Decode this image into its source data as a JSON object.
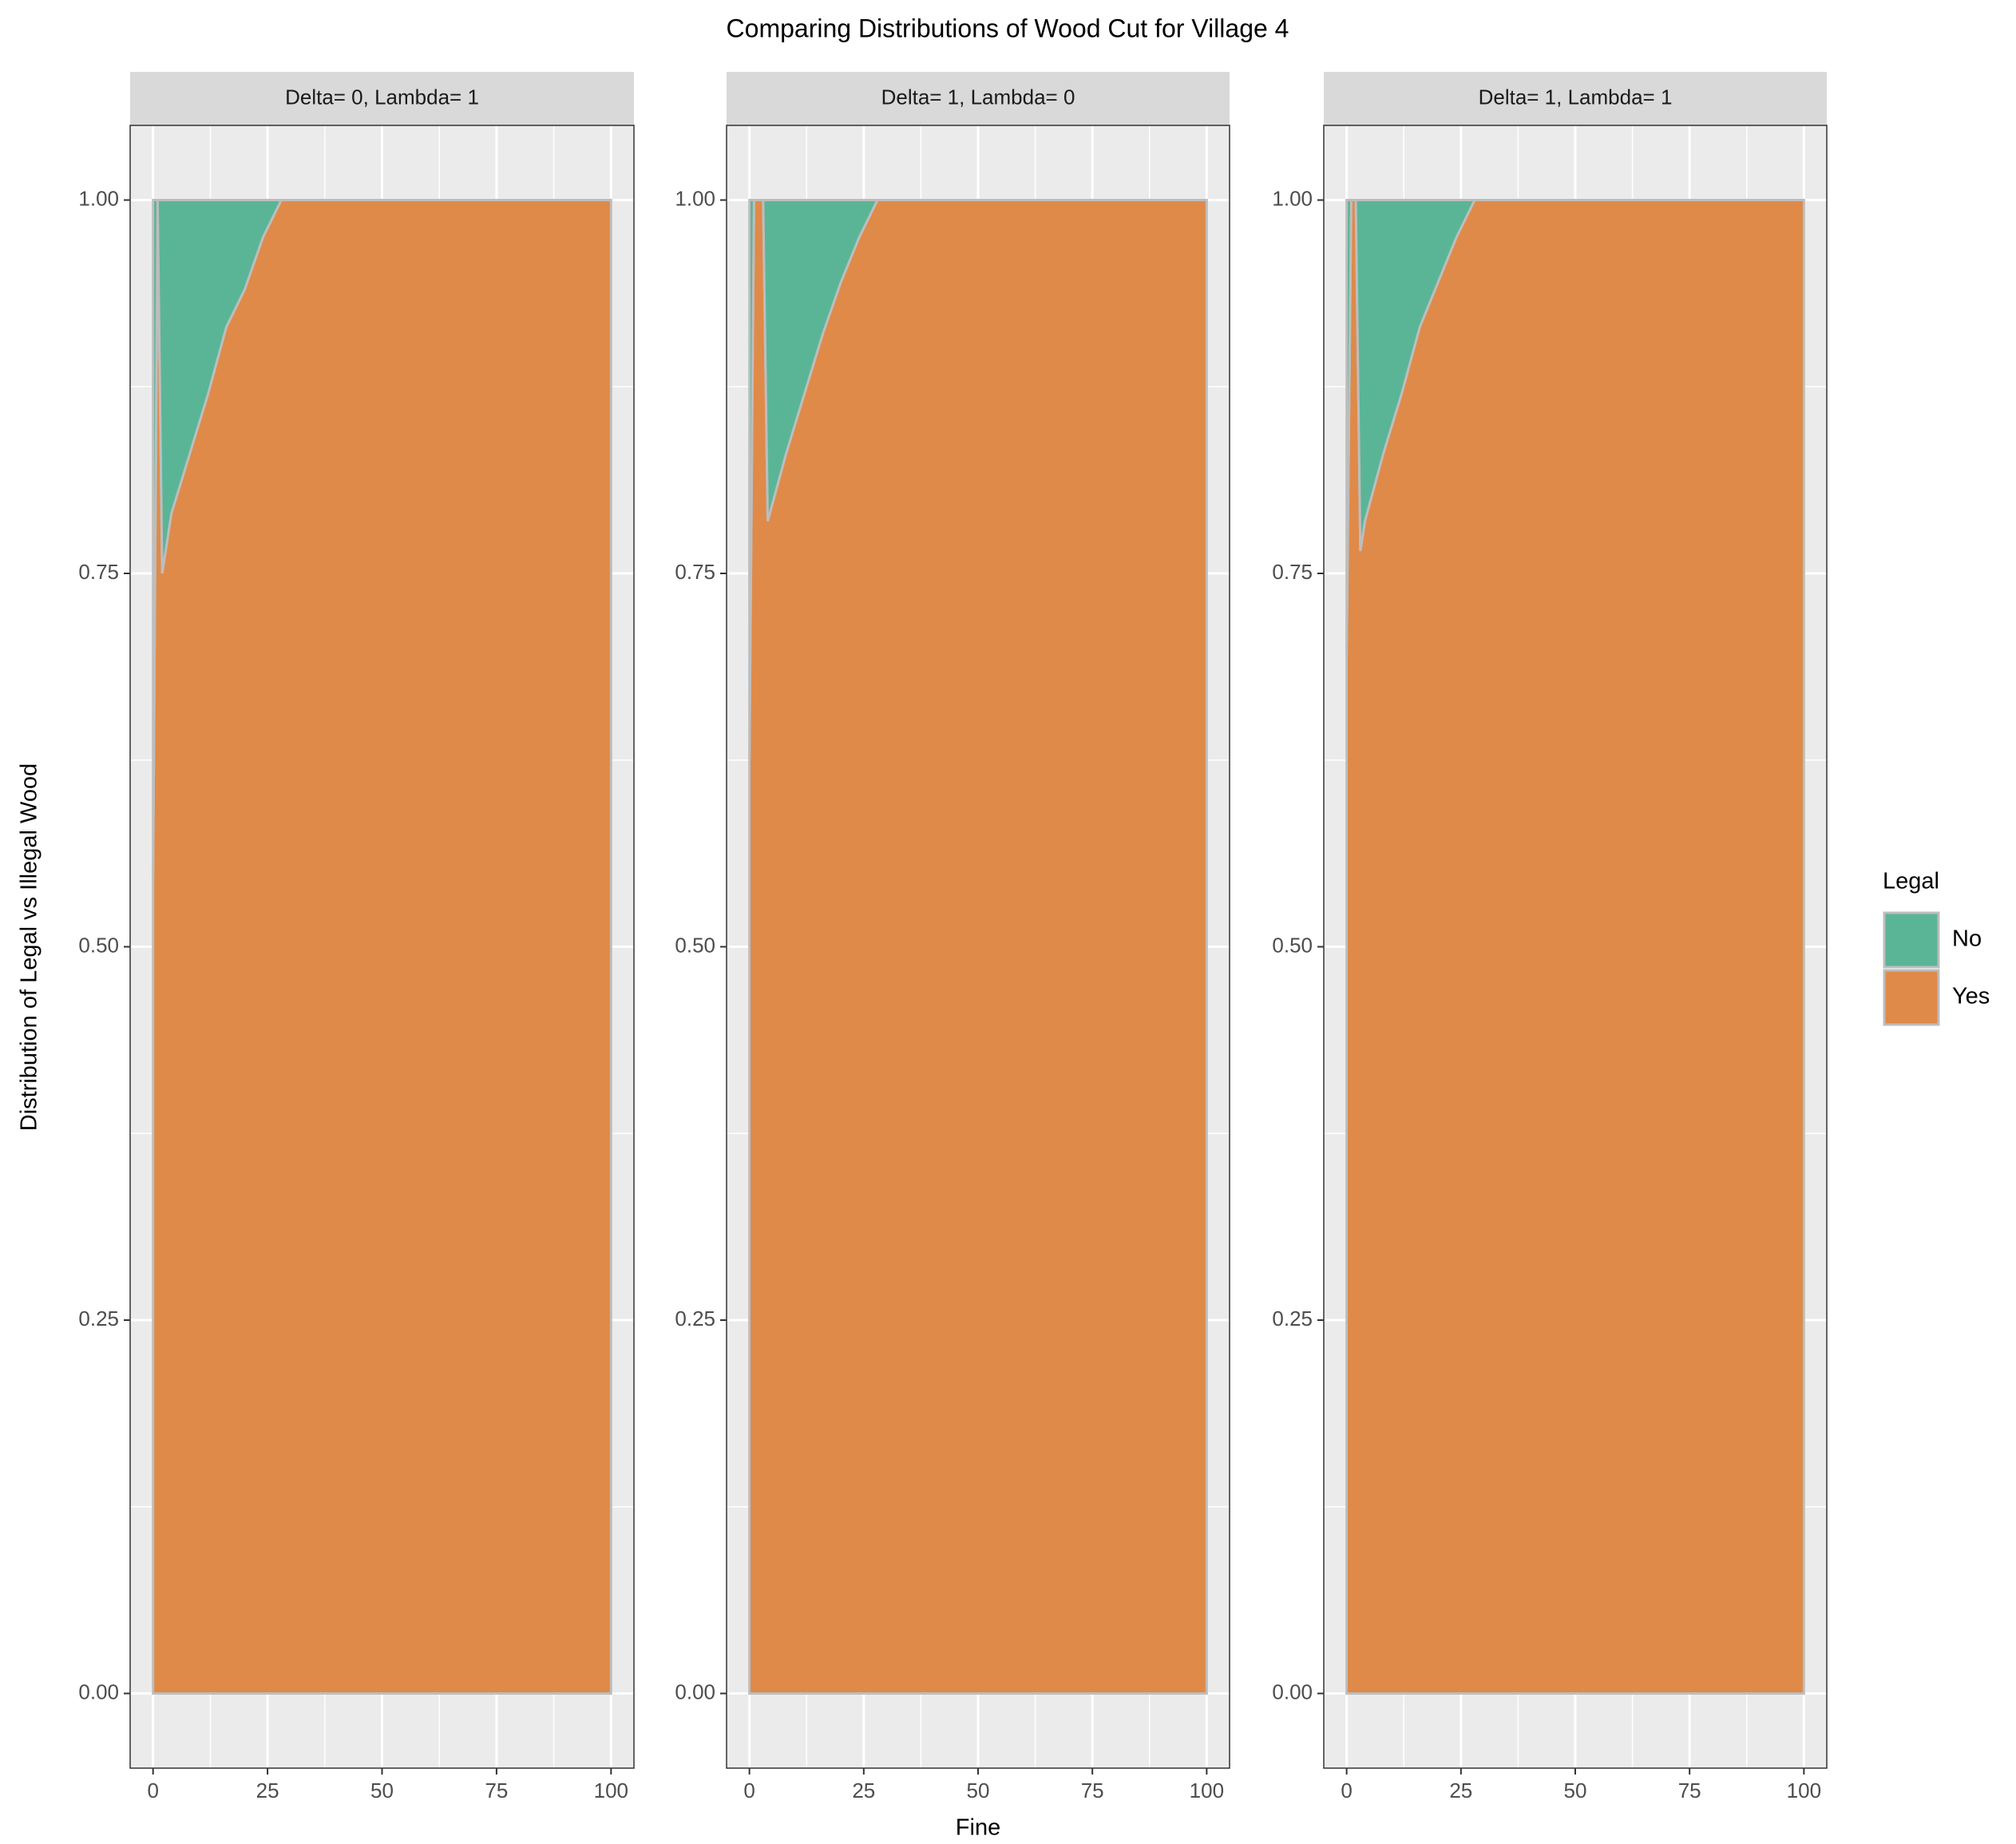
{
  "title": "Comparing Distributions of Wood Cut for Village 4",
  "x_label": "Fine",
  "y_label": "Distribution of Legal vs Illegal Wood",
  "legend_title": "Legal",
  "chart_data": [
    {
      "type": "area",
      "title": "Delta= 0, Lambda= 1",
      "x": [
        0,
        1,
        2,
        4,
        8,
        12,
        16,
        20,
        24,
        28,
        100
      ],
      "series": [
        {
          "name": "No",
          "color": "#5ab597",
          "values": [
            0.455,
            0,
            0.25,
            0.21,
            0.17,
            0.13,
            0.085,
            0.06,
            0.025,
            0,
            0
          ]
        },
        {
          "name": "Yes",
          "color": "#df8a48",
          "values": [
            0.545,
            1,
            0.75,
            0.79,
            0.83,
            0.87,
            0.915,
            0.94,
            0.975,
            1,
            1
          ]
        }
      ],
      "xlim": [
        -5,
        105
      ],
      "ylim": [
        -0.05,
        1.05
      ],
      "xticks": [
        0,
        25,
        50,
        75,
        100
      ],
      "yticks": [
        {
          "value": 0,
          "label": "0.00"
        },
        {
          "value": 0.25,
          "label": "0.25"
        },
        {
          "value": 0.5,
          "label": "0.50"
        },
        {
          "value": 0.75,
          "label": "0.75"
        },
        {
          "value": 1,
          "label": "1.00"
        }
      ],
      "grid": true
    },
    {
      "type": "area",
      "title": "Delta= 1, Lambda= 0",
      "x": [
        0,
        1,
        3,
        4,
        8,
        12,
        16,
        20,
        24,
        28,
        100
      ],
      "series": [
        {
          "name": "No",
          "color": "#5ab597",
          "values": [
            0.375,
            0,
            0,
            0.215,
            0.17,
            0.13,
            0.09,
            0.055,
            0.025,
            0,
            0
          ]
        },
        {
          "name": "Yes",
          "color": "#df8a48",
          "values": [
            0.625,
            1,
            1,
            0.785,
            0.83,
            0.87,
            0.91,
            0.945,
            0.975,
            1,
            1
          ]
        }
      ],
      "xlim": [
        -5,
        105
      ],
      "ylim": [
        -0.05,
        1.05
      ],
      "xticks": [
        0,
        25,
        50,
        75,
        100
      ],
      "yticks": [
        {
          "value": 0,
          "label": "0.00"
        },
        {
          "value": 0.25,
          "label": "0.25"
        },
        {
          "value": 0.5,
          "label": "0.50"
        },
        {
          "value": 0.75,
          "label": "0.75"
        },
        {
          "value": 1,
          "label": "1.00"
        }
      ],
      "grid": true
    },
    {
      "type": "area",
      "title": "Delta= 1, Lambda= 1",
      "x": [
        0,
        1,
        2,
        3,
        4,
        8,
        12,
        16,
        20,
        24,
        28,
        100
      ],
      "series": [
        {
          "name": "No",
          "color": "#5ab597",
          "values": [
            0.305,
            0,
            0,
            0.235,
            0.215,
            0.17,
            0.13,
            0.085,
            0.055,
            0.025,
            0,
            0
          ]
        },
        {
          "name": "Yes",
          "color": "#df8a48",
          "values": [
            0.695,
            1,
            1,
            0.765,
            0.785,
            0.83,
            0.87,
            0.915,
            0.945,
            0.975,
            1,
            1
          ]
        }
      ],
      "xlim": [
        -5,
        105
      ],
      "ylim": [
        -0.05,
        1.05
      ],
      "xticks": [
        0,
        25,
        50,
        75,
        100
      ],
      "yticks": [
        {
          "value": 0,
          "label": "0.00"
        },
        {
          "value": 0.25,
          "label": "0.25"
        },
        {
          "value": 0.5,
          "label": "0.50"
        },
        {
          "value": 0.75,
          "label": "0.75"
        },
        {
          "value": 1,
          "label": "1.00"
        }
      ],
      "grid": true
    }
  ]
}
